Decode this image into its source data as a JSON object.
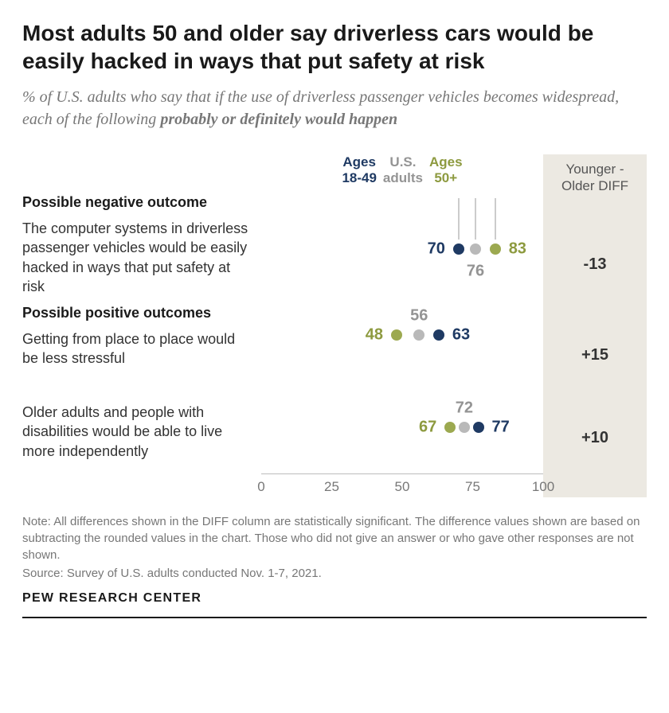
{
  "title": "Most adults 50 and older say driverless cars would be easily hacked in ways that put safety at risk",
  "subtitle_prefix": "% of U.S. adults who say that if the use of driverless passenger vehicles becomes widespread, each of the following ",
  "subtitle_bold": "probably or definitely would happen",
  "legend": {
    "young_l1": "Ages",
    "young_l2": "18-49",
    "all_l1": "U.S.",
    "all_l2": "adults",
    "old_l1": "Ages",
    "old_l2": "50+"
  },
  "diff_header_l1": "Younger -",
  "diff_header_l2": "Older DIFF",
  "sections": {
    "neg_header": "Possible negative outcome",
    "pos_header": "Possible positive outcomes"
  },
  "rows": [
    {
      "label": "The computer systems in driverless passenger vehicles would be easily hacked in ways that put safety at risk",
      "young": 70,
      "all": 76,
      "old": 83,
      "diff": "-13",
      "young_on_left": true
    },
    {
      "label": "Getting from place to place would be less stressful",
      "young": 63,
      "all": 56,
      "old": 48,
      "diff": "+15",
      "young_on_left": false
    },
    {
      "label": "Older adults and people with disabilities would be able to live more independently",
      "young": 77,
      "all": 72,
      "old": 67,
      "diff": "+10",
      "young_on_left": false
    }
  ],
  "colors": {
    "young": "#1f3a63",
    "all": "#b9b9b9",
    "old": "#9ca950",
    "text_young": "#1f3a63",
    "text_all": "#949494",
    "text_old": "#8d9a3f"
  },
  "axis": {
    "min": 0,
    "max": 100,
    "ticks": [
      0,
      25,
      50,
      75,
      100
    ]
  },
  "note": "Note: All differences shown in the DIFF column are statistically significant. The difference values shown are based on subtracting the rounded values in the chart. Those who did not give an answer or who gave other responses are not shown.",
  "source": "Source: Survey of U.S. adults conducted Nov. 1-7, 2021.",
  "brand": "PEW RESEARCH CENTER"
}
